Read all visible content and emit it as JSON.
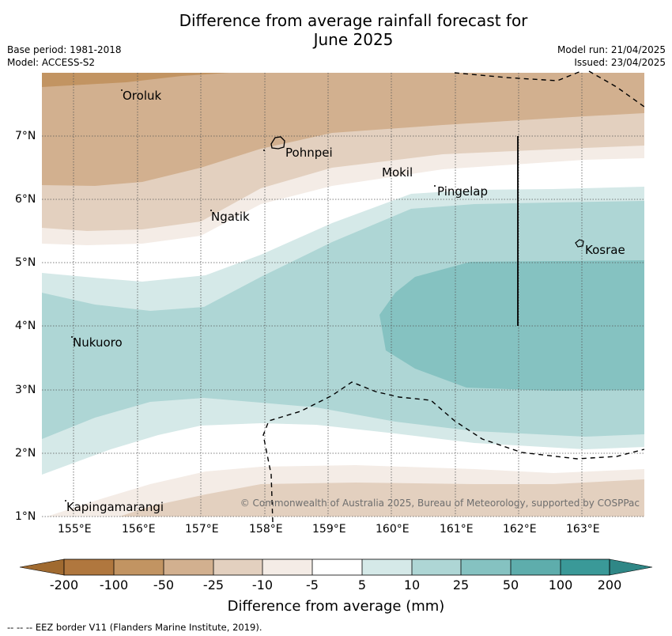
{
  "title_line1": "Difference from average rainfall forecast for",
  "title_line2": "June 2025",
  "base_period": "Base period: 1981-2018",
  "model": "Model: ACCESS-S2",
  "model_run": "Model run: 21/04/2025",
  "issued": "Issued: 23/04/2025",
  "copyright": "© Commonwealth of Australia 2025, Bureau of Meteorology, supported by COSPPac",
  "places": {
    "oroluk": "Oroluk",
    "pohnpei": "Pohnpei",
    "mokil": "Mokil",
    "pingelap": "Pingelap",
    "ngatik": "Ngatik",
    "kosrae": "Kosrae",
    "nukuoro": "Nukuoro",
    "kapingamarangi": "Kapingamarangi"
  },
  "lat_labels": [
    "7°N",
    "6°N",
    "5°N",
    "4°N",
    "3°N",
    "2°N",
    "1°N"
  ],
  "lon_labels": [
    "155°E",
    "156°E",
    "157°E",
    "158°E",
    "159°E",
    "160°E",
    "161°E",
    "162°E",
    "163°E"
  ],
  "colorbar": {
    "ticks": [
      "-200",
      "-100",
      "-50",
      "-25",
      "-10",
      "-5",
      "5",
      "10",
      "25",
      "50",
      "100",
      "200"
    ],
    "title": "Difference from average (mm)",
    "colors": {
      "below_min": "#a06a30",
      "c1": "#b0773e",
      "c2": "#c29462",
      "c3": "#d2b08f",
      "c4": "#e3d0bf",
      "c5": "#f4ece6",
      "c6": "#ffffff",
      "c7": "#d5e9e8",
      "c8": "#aed6d5",
      "c9": "#85c2c1",
      "c10": "#5eadac",
      "c11": "#3a9998",
      "above_max": "#2f8786"
    }
  },
  "footer": "--  --  -- EEZ border V11 (Flanders Marine Institute, 2019)."
}
